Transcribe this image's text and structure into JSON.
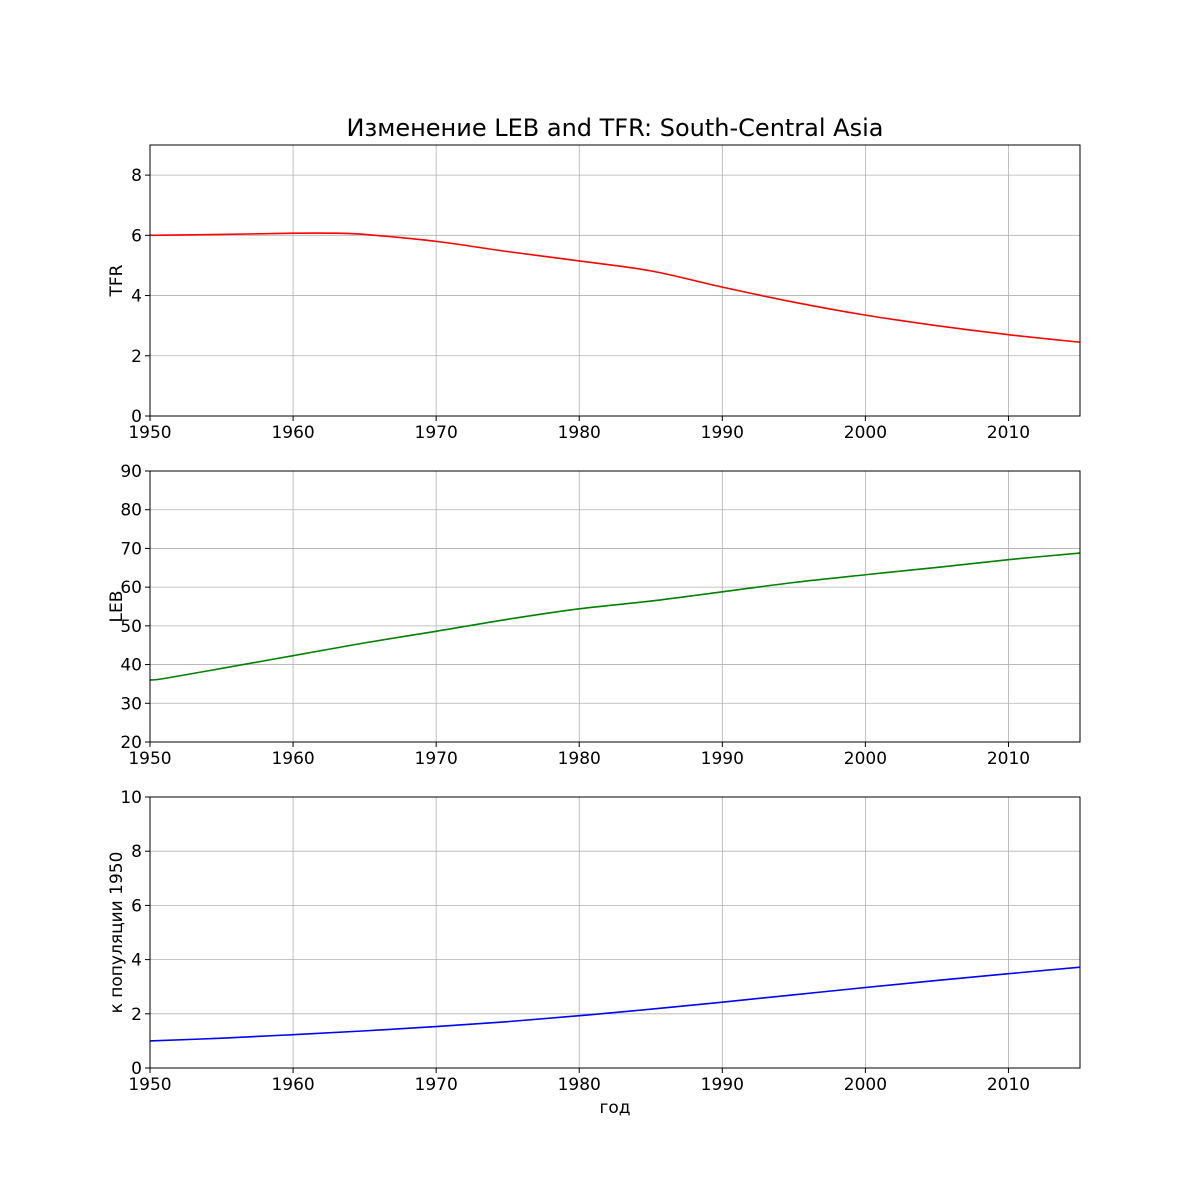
{
  "title": "Изменение LEB and TFR: South-Central Asia",
  "chart_data": [
    {
      "type": "line",
      "title": "Изменение LEB and TFR: South-Central Asia",
      "xlabel": "",
      "ylabel": "TFR",
      "xlim": [
        1950,
        2015
      ],
      "ylim": [
        0,
        9
      ],
      "xticks": [
        1950,
        1960,
        1970,
        1980,
        1990,
        2000,
        2010
      ],
      "yticks": [
        0,
        2,
        4,
        6,
        8
      ],
      "grid": true,
      "color": "#ff0000",
      "series": [
        {
          "x": [
            1950,
            1955,
            1960,
            1963,
            1965,
            1970,
            1975,
            1980,
            1985,
            1990,
            1995,
            2000,
            2005,
            2010,
            2015
          ],
          "values": [
            6.0,
            6.03,
            6.07,
            6.07,
            6.03,
            5.8,
            5.46,
            5.15,
            4.82,
            4.28,
            3.78,
            3.35,
            3.0,
            2.7,
            2.45
          ]
        }
      ]
    },
    {
      "type": "line",
      "xlabel": "",
      "ylabel": "LEB",
      "xlim": [
        1950,
        2015
      ],
      "ylim": [
        20,
        90
      ],
      "xticks": [
        1950,
        1960,
        1970,
        1980,
        1990,
        2000,
        2010
      ],
      "yticks": [
        20,
        30,
        40,
        50,
        60,
        70,
        80,
        90
      ],
      "grid": true,
      "color": "#008000",
      "series": [
        {
          "x": [
            1950,
            1951,
            1955,
            1960,
            1965,
            1970,
            1975,
            1980,
            1985,
            1990,
            1995,
            2000,
            2005,
            2010,
            2015
          ],
          "values": [
            36.0,
            36.4,
            39.0,
            42.3,
            45.6,
            48.6,
            51.7,
            54.4,
            56.4,
            58.8,
            61.2,
            63.2,
            65.1,
            67.1,
            68.8
          ]
        }
      ]
    },
    {
      "type": "line",
      "xlabel": "год",
      "ylabel": "к популяции 1950",
      "xlim": [
        1950,
        2015
      ],
      "ylim": [
        0,
        10
      ],
      "xticks": [
        1950,
        1960,
        1970,
        1980,
        1990,
        2000,
        2010
      ],
      "yticks": [
        0,
        2,
        4,
        6,
        8,
        10
      ],
      "grid": true,
      "color": "#0000ff",
      "series": [
        {
          "x": [
            1950,
            1955,
            1960,
            1965,
            1970,
            1975,
            1980,
            1985,
            1990,
            1995,
            2000,
            2005,
            2010,
            2015
          ],
          "values": [
            1.0,
            1.1,
            1.23,
            1.37,
            1.53,
            1.71,
            1.93,
            2.17,
            2.43,
            2.7,
            2.97,
            3.23,
            3.48,
            3.72
          ]
        }
      ]
    }
  ]
}
